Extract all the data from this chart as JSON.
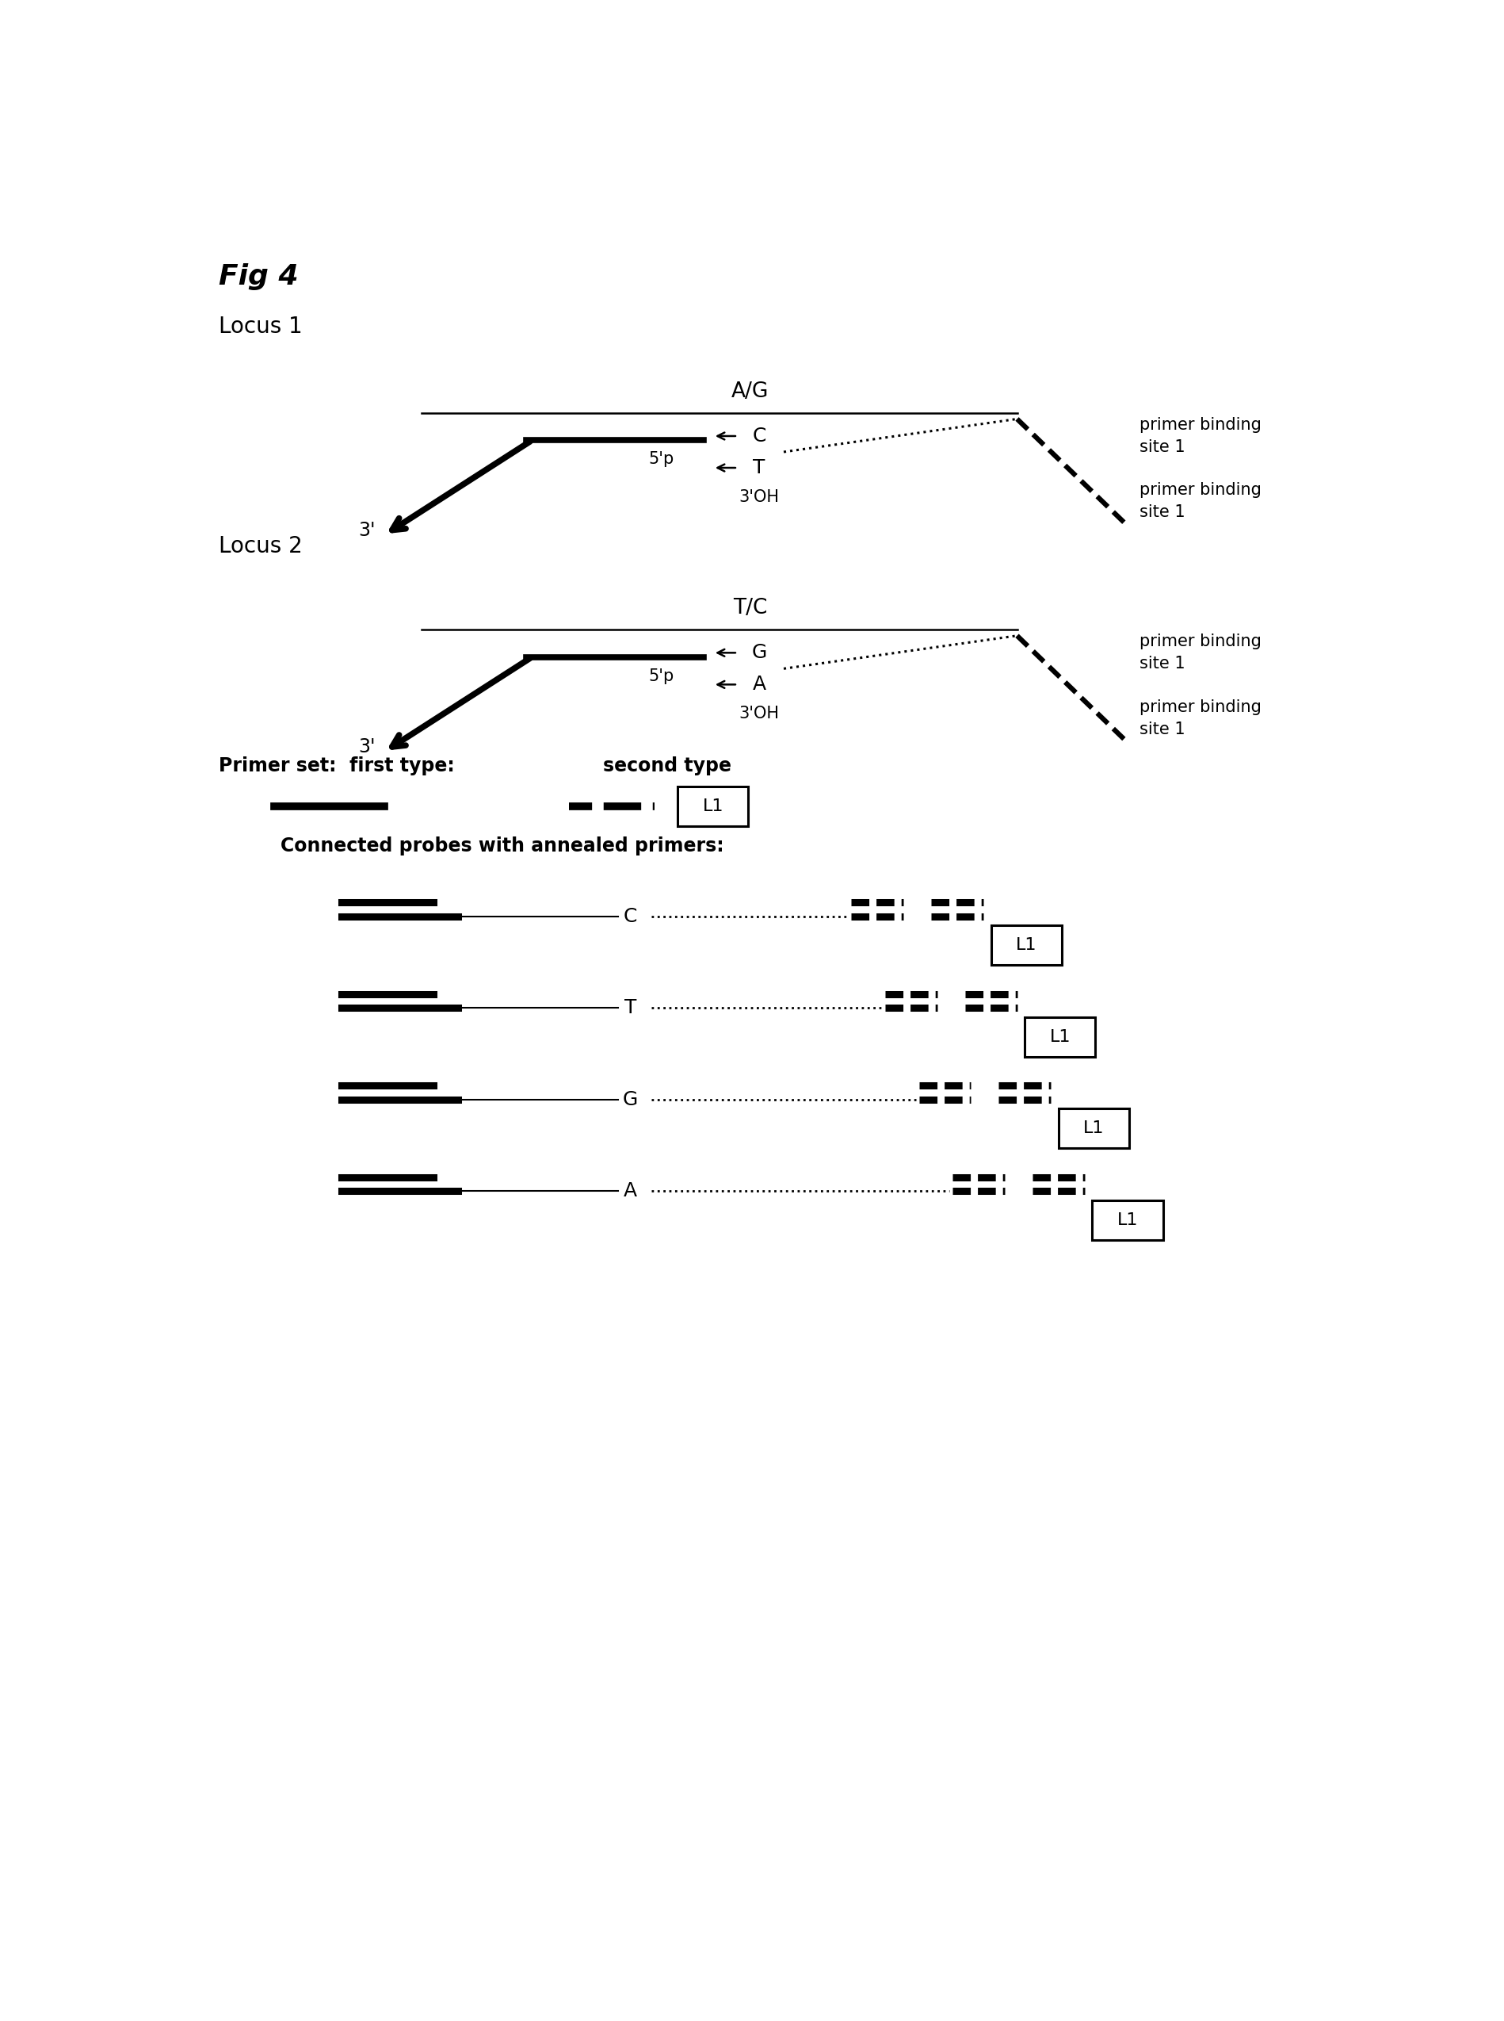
{
  "fig_title": "Fig 4",
  "locus1_label": "Locus 1",
  "locus2_label": "Locus 2",
  "locus1_snp": "A/G",
  "locus2_snp": "T/C",
  "primer_set_label": "Primer set:  first type:",
  "second_type_label": "second type",
  "connected_probes_label": "Connected probes with annealed primers:",
  "snp_labels_locus1": [
    "C",
    "T"
  ],
  "snp_labels_locus2": [
    "G",
    "A"
  ],
  "label_5p": "5'p",
  "label_3": "3'",
  "label_3oh": "3'OH",
  "primer_binding_site1": "primer binding\nsite 1",
  "connected_snps": [
    "C",
    "T",
    "G",
    "A"
  ],
  "L1_label": "L1",
  "bg_color": "#ffffff",
  "text_color": "#000000"
}
